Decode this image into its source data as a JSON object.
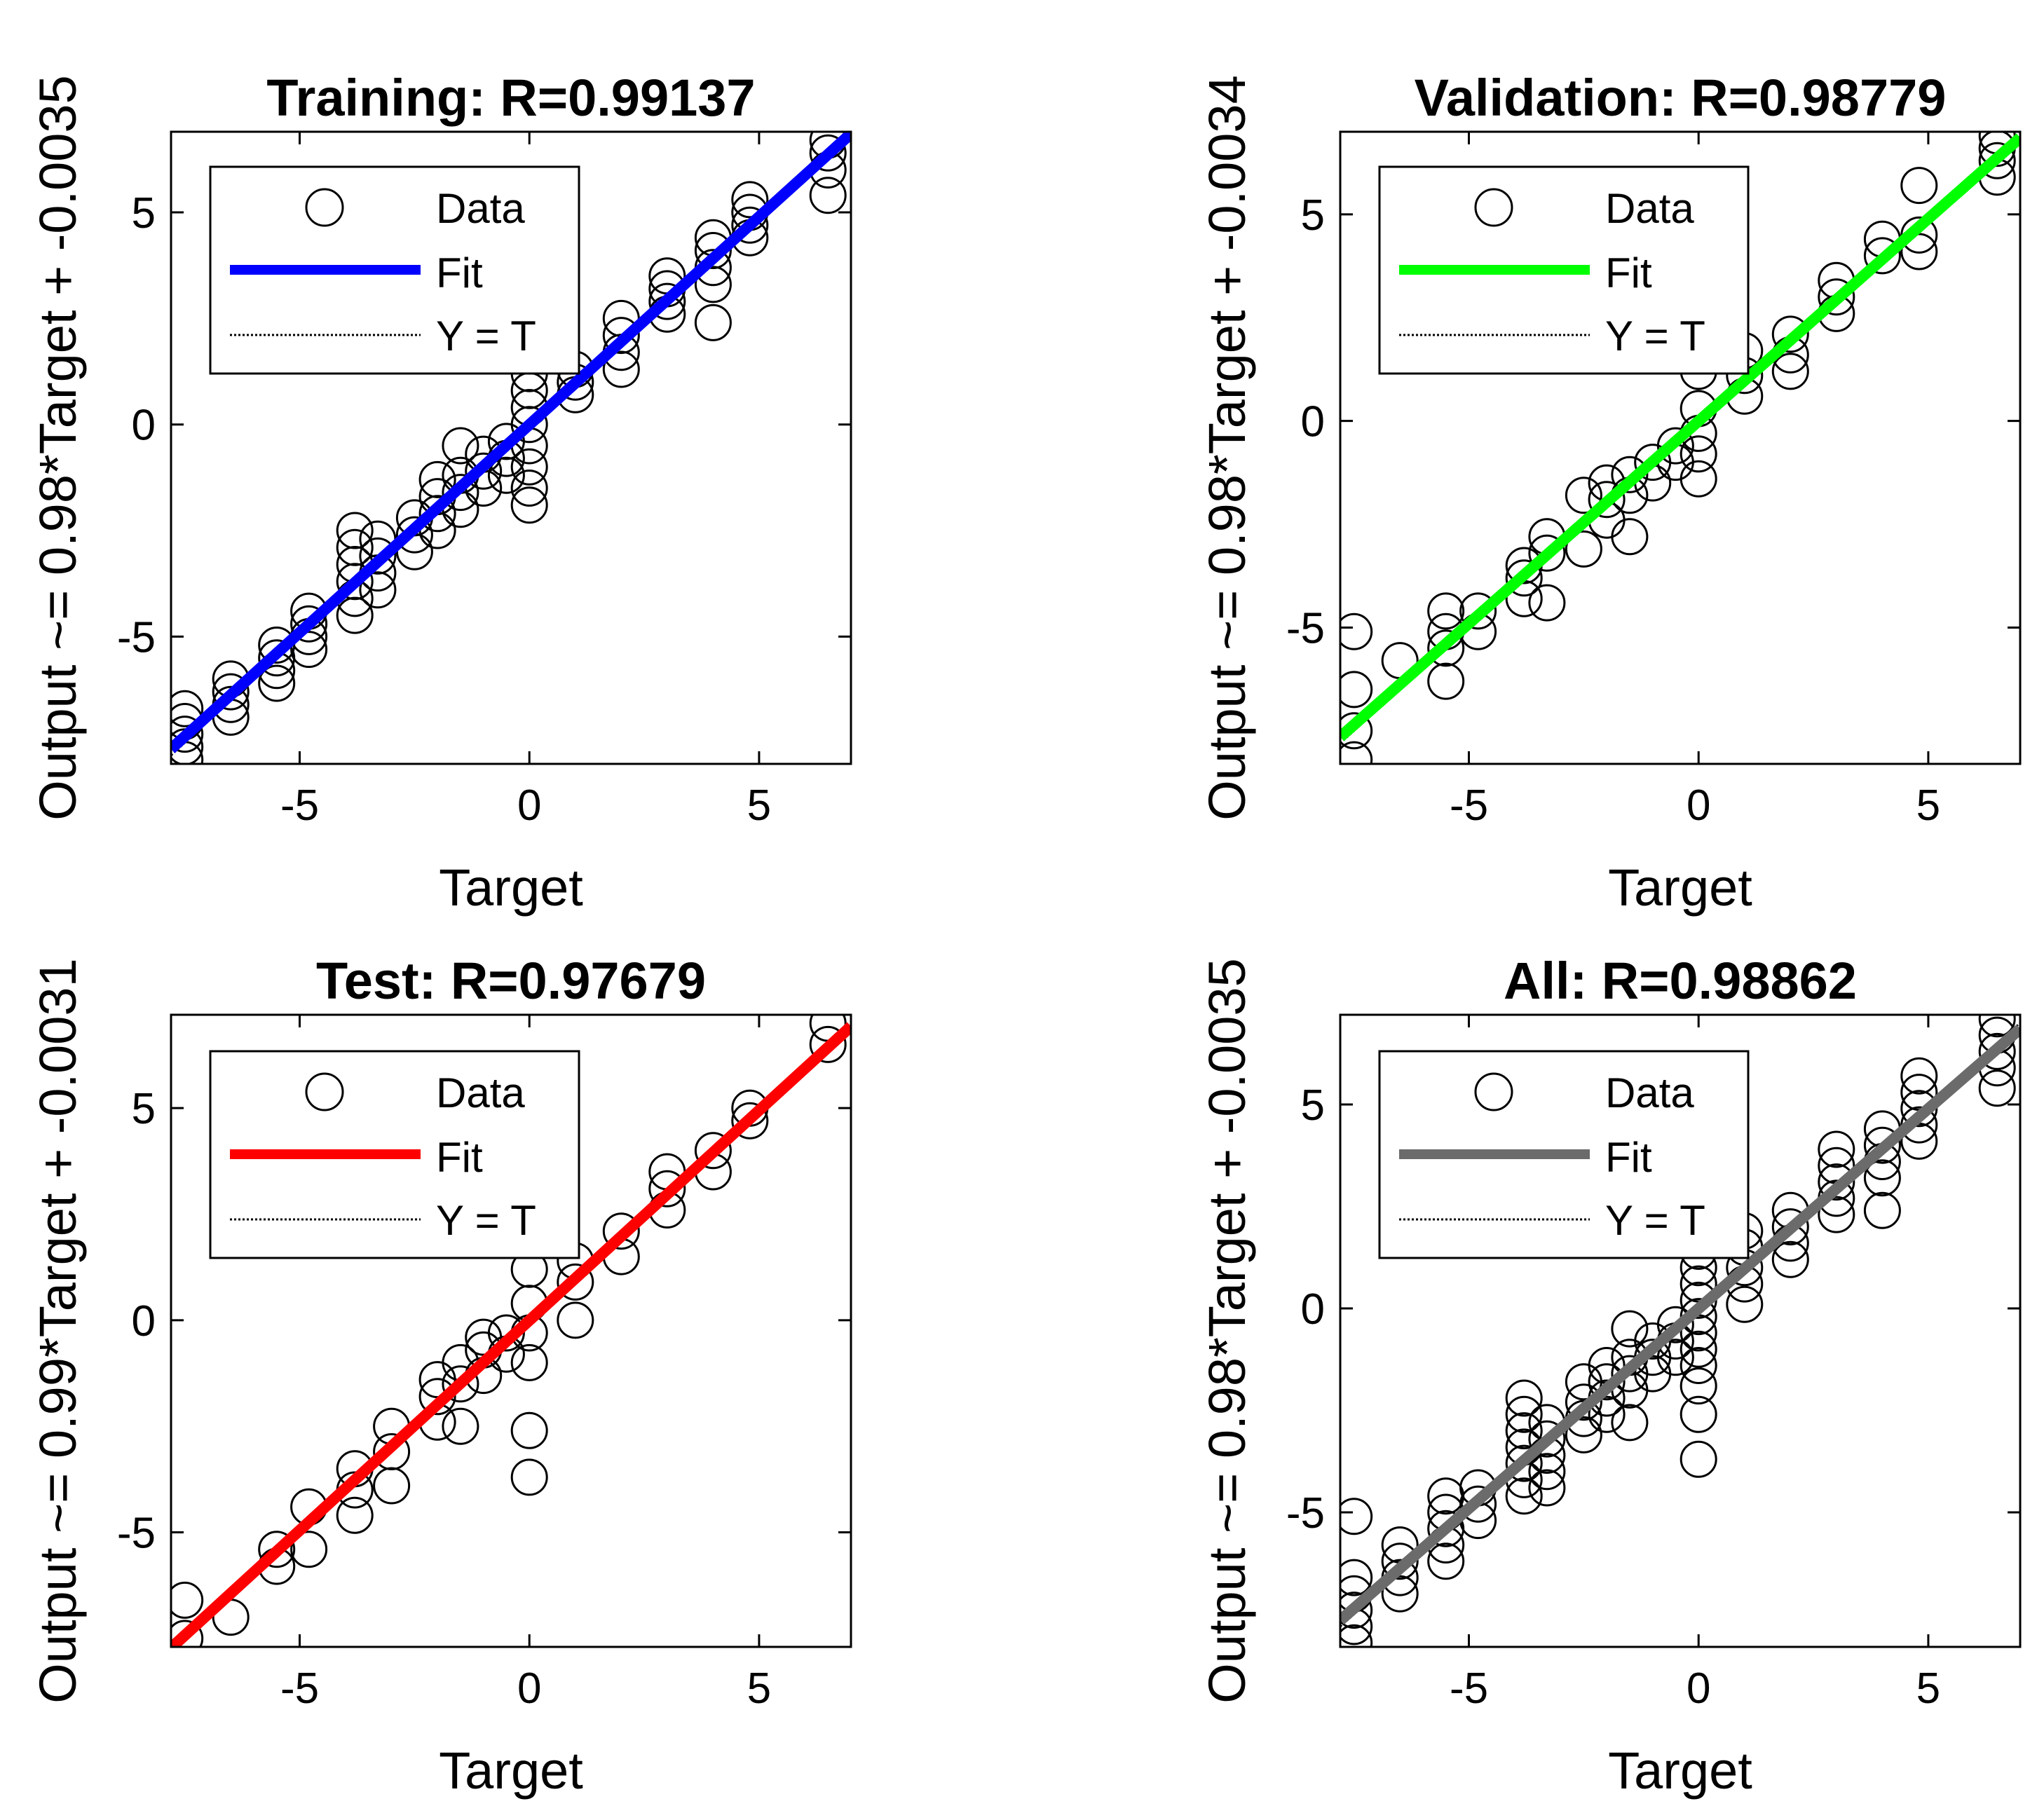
{
  "figure": {
    "marker": "circle-open",
    "marker_color": "#000000"
  },
  "chart_data": [
    {
      "type": "scatter",
      "title": "Training: R=0.99137",
      "xlabel": "Target",
      "ylabel": "Output ~= 0.98*Target + -0.0035",
      "xlim": [
        -7.8,
        7.0
      ],
      "ylim": [
        -8.0,
        6.9
      ],
      "xticks": [
        -5,
        0,
        5
      ],
      "yticks": [
        -5,
        0,
        5
      ],
      "legend": {
        "position": "top-left",
        "entries": [
          "Data",
          "Fit",
          "Y = T"
        ]
      },
      "fit": {
        "slope": 0.98,
        "intercept": -0.0035,
        "color": "#0000ff"
      },
      "target_levels": [
        -7.5,
        -6.5,
        -5.5,
        -4.8,
        -3.8,
        -3.3,
        -2.5,
        -2.0,
        -1.5,
        -1.0,
        -0.5,
        0.0,
        1.0,
        2.0,
        3.0,
        4.0,
        4.8,
        6.5
      ],
      "points": [
        [
          -7.5,
          -7.9
        ],
        [
          -7.5,
          -7.6
        ],
        [
          -7.5,
          -7.3
        ],
        [
          -7.5,
          -7.0
        ],
        [
          -7.5,
          -6.7
        ],
        [
          -6.5,
          -6.9
        ],
        [
          -6.5,
          -6.6
        ],
        [
          -6.5,
          -6.3
        ],
        [
          -6.5,
          -6.0
        ],
        [
          -5.5,
          -6.1
        ],
        [
          -5.5,
          -5.8
        ],
        [
          -5.5,
          -5.5
        ],
        [
          -5.5,
          -5.2
        ],
        [
          -4.8,
          -5.3
        ],
        [
          -4.8,
          -5.0
        ],
        [
          -4.8,
          -4.7
        ],
        [
          -4.8,
          -4.4
        ],
        [
          -3.8,
          -4.5
        ],
        [
          -3.8,
          -4.1
        ],
        [
          -3.8,
          -3.7
        ],
        [
          -3.8,
          -3.3
        ],
        [
          -3.8,
          -2.9
        ],
        [
          -3.8,
          -2.5
        ],
        [
          -3.3,
          -3.9
        ],
        [
          -3.3,
          -3.5
        ],
        [
          -3.3,
          -3.1
        ],
        [
          -3.3,
          -2.7
        ],
        [
          -2.5,
          -3.0
        ],
        [
          -2.5,
          -2.6
        ],
        [
          -2.5,
          -2.2
        ],
        [
          -2.0,
          -2.5
        ],
        [
          -2.0,
          -2.1
        ],
        [
          -2.0,
          -1.7
        ],
        [
          -2.0,
          -1.3
        ],
        [
          -1.5,
          -2.0
        ],
        [
          -1.5,
          -1.6
        ],
        [
          -1.5,
          -1.2
        ],
        [
          -1.5,
          -0.5
        ],
        [
          -1.0,
          -1.5
        ],
        [
          -1.0,
          -1.1
        ],
        [
          -1.0,
          -0.7
        ],
        [
          -0.5,
          -1.2
        ],
        [
          -0.5,
          -0.8
        ],
        [
          -0.5,
          -0.4
        ],
        [
          0.0,
          -1.9
        ],
        [
          0.0,
          -1.5
        ],
        [
          0.0,
          -1.0
        ],
        [
          0.0,
          -0.5
        ],
        [
          0.0,
          0.0
        ],
        [
          0.0,
          0.4
        ],
        [
          0.0,
          0.8
        ],
        [
          0.0,
          1.2
        ],
        [
          1.0,
          0.7
        ],
        [
          1.0,
          1.0
        ],
        [
          1.0,
          1.3
        ],
        [
          2.0,
          1.3
        ],
        [
          2.0,
          1.7
        ],
        [
          2.0,
          2.1
        ],
        [
          2.0,
          2.5
        ],
        [
          3.0,
          2.6
        ],
        [
          3.0,
          2.9
        ],
        [
          3.0,
          3.2
        ],
        [
          3.0,
          3.5
        ],
        [
          4.0,
          2.4
        ],
        [
          4.0,
          3.3
        ],
        [
          4.0,
          3.7
        ],
        [
          4.0,
          4.1
        ],
        [
          4.0,
          4.4
        ],
        [
          4.8,
          4.4
        ],
        [
          4.8,
          4.7
        ],
        [
          4.8,
          5.0
        ],
        [
          4.8,
          5.3
        ],
        [
          6.5,
          5.4
        ],
        [
          6.5,
          6.0
        ],
        [
          6.5,
          6.4
        ],
        [
          6.5,
          6.7
        ]
      ]
    },
    {
      "type": "scatter",
      "title": "Validation: R=0.98779",
      "xlabel": "Target",
      "ylabel": "Output ~= 0.98*Target + -0.0034",
      "xlim": [
        -7.8,
        7.0
      ],
      "ylim": [
        -8.3,
        7.0
      ],
      "xticks": [
        -5,
        0,
        5
      ],
      "yticks": [
        -5,
        0,
        5
      ],
      "legend": {
        "position": "top-left",
        "entries": [
          "Data",
          "Fit",
          "Y = T"
        ]
      },
      "fit": {
        "slope": 0.98,
        "intercept": -0.0034,
        "color": "#00ff00"
      },
      "target_levels": [
        -7.5,
        -6.5,
        -5.5,
        -4.8,
        -3.8,
        -3.3,
        -2.5,
        -2.0,
        -1.5,
        -1.0,
        -0.5,
        0.0,
        1.0,
        2.0,
        3.0,
        4.0,
        4.8,
        6.5
      ],
      "points": [
        [
          -7.5,
          -8.2
        ],
        [
          -7.5,
          -7.5
        ],
        [
          -7.5,
          -6.5
        ],
        [
          -7.5,
          -5.1
        ],
        [
          -6.5,
          -5.8
        ],
        [
          -5.5,
          -6.3
        ],
        [
          -5.5,
          -5.5
        ],
        [
          -5.5,
          -5.1
        ],
        [
          -5.5,
          -4.6
        ],
        [
          -4.8,
          -5.1
        ],
        [
          -4.8,
          -4.6
        ],
        [
          -3.8,
          -4.3
        ],
        [
          -3.8,
          -3.8
        ],
        [
          -3.8,
          -3.5
        ],
        [
          -3.3,
          -4.4
        ],
        [
          -3.3,
          -3.2
        ],
        [
          -3.3,
          -2.8
        ],
        [
          -2.5,
          -3.1
        ],
        [
          -2.5,
          -1.8
        ],
        [
          -2.0,
          -2.4
        ],
        [
          -2.0,
          -1.9
        ],
        [
          -2.0,
          -1.5
        ],
        [
          -1.5,
          -2.8
        ],
        [
          -1.5,
          -1.8
        ],
        [
          -1.5,
          -1.3
        ],
        [
          -1.0,
          -1.5
        ],
        [
          -1.0,
          -1.0
        ],
        [
          -0.5,
          -1.0
        ],
        [
          -0.5,
          -0.6
        ],
        [
          0.0,
          -1.4
        ],
        [
          0.0,
          -0.8
        ],
        [
          0.0,
          -0.3
        ],
        [
          0.0,
          0.3
        ],
        [
          0.0,
          1.2
        ],
        [
          1.0,
          0.6
        ],
        [
          1.0,
          1.1
        ],
        [
          1.0,
          1.7
        ],
        [
          2.0,
          1.2
        ],
        [
          2.0,
          1.6
        ],
        [
          2.0,
          2.1
        ],
        [
          3.0,
          2.6
        ],
        [
          3.0,
          3.0
        ],
        [
          3.0,
          3.4
        ],
        [
          4.0,
          4.0
        ],
        [
          4.0,
          4.4
        ],
        [
          4.8,
          4.1
        ],
        [
          4.8,
          4.5
        ],
        [
          4.8,
          5.7
        ],
        [
          6.5,
          5.9
        ],
        [
          6.5,
          6.3
        ],
        [
          6.5,
          6.6
        ],
        [
          6.5,
          6.9
        ]
      ]
    },
    {
      "type": "scatter",
      "title": "Test: R=0.97679",
      "xlabel": "Target",
      "ylabel": "Output ~= 0.99*Target + -0.0031",
      "xlim": [
        -7.8,
        7.0
      ],
      "ylim": [
        -7.7,
        7.2
      ],
      "xticks": [
        -5,
        0,
        5
      ],
      "yticks": [
        -5,
        0,
        5
      ],
      "legend": {
        "position": "top-left",
        "entries": [
          "Data",
          "Fit",
          "Y = T"
        ]
      },
      "fit": {
        "slope": 0.99,
        "intercept": -0.0031,
        "color": "#ff0000"
      },
      "target_levels": [
        -7.5,
        -6.5,
        -5.5,
        -4.8,
        -3.8,
        -3.3,
        -2.5,
        -2.0,
        -1.5,
        -1.0,
        -0.5,
        0.0,
        1.0,
        2.0,
        3.0,
        4.0,
        4.8,
        6.5
      ],
      "points": [
        [
          -7.5,
          -7.5
        ],
        [
          -7.5,
          -6.6
        ],
        [
          -6.5,
          -7.0
        ],
        [
          -5.5,
          -5.8
        ],
        [
          -5.5,
          -5.4
        ],
        [
          -4.8,
          -5.4
        ],
        [
          -4.8,
          -4.4
        ],
        [
          -3.8,
          -4.6
        ],
        [
          -3.8,
          -4.0
        ],
        [
          -3.8,
          -3.5
        ],
        [
          -3.0,
          -3.9
        ],
        [
          -3.0,
          -3.1
        ],
        [
          -3.0,
          -2.5
        ],
        [
          -2.0,
          -2.4
        ],
        [
          -2.0,
          -1.8
        ],
        [
          -2.0,
          -1.4
        ],
        [
          -1.5,
          -2.5
        ],
        [
          -1.5,
          -1.5
        ],
        [
          -1.5,
          -1.0
        ],
        [
          -1.0,
          -1.3
        ],
        [
          -1.0,
          -0.7
        ],
        [
          -1.0,
          -0.4
        ],
        [
          -0.5,
          -0.8
        ],
        [
          -0.5,
          -0.3
        ],
        [
          0.0,
          -3.7
        ],
        [
          0.0,
          -2.6
        ],
        [
          0.0,
          -1.0
        ],
        [
          0.0,
          -0.3
        ],
        [
          0.0,
          0.4
        ],
        [
          0.0,
          1.2
        ],
        [
          1.0,
          0.0
        ],
        [
          1.0,
          0.9
        ],
        [
          1.0,
          1.4
        ],
        [
          2.0,
          1.5
        ],
        [
          2.0,
          2.1
        ],
        [
          3.0,
          2.6
        ],
        [
          3.0,
          3.1
        ],
        [
          3.0,
          3.5
        ],
        [
          4.0,
          3.5
        ],
        [
          4.0,
          4.0
        ],
        [
          4.8,
          4.7
        ],
        [
          4.8,
          5.0
        ],
        [
          6.5,
          6.5
        ],
        [
          6.5,
          7.0
        ]
      ]
    },
    {
      "type": "scatter",
      "title": "All: R=0.98862",
      "xlabel": "Target",
      "ylabel": "Output ~= 0.98*Target + -0.0035",
      "xlim": [
        -7.8,
        7.0
      ],
      "ylim": [
        -8.3,
        7.2
      ],
      "xticks": [
        -5,
        0,
        5
      ],
      "yticks": [
        -5,
        0,
        5
      ],
      "legend": {
        "position": "top-left",
        "entries": [
          "Data",
          "Fit",
          "Y = T"
        ]
      },
      "fit": {
        "slope": 0.98,
        "intercept": -0.0035,
        "color": "#6b6b6b"
      },
      "target_levels": [
        -7.5,
        -6.5,
        -5.5,
        -4.8,
        -3.8,
        -3.3,
        -2.5,
        -2.0,
        -1.5,
        -1.0,
        -0.5,
        0.0,
        1.0,
        2.0,
        3.0,
        4.0,
        4.8,
        6.5
      ],
      "points": [
        [
          -7.5,
          -8.2
        ],
        [
          -7.5,
          -7.8
        ],
        [
          -7.5,
          -7.4
        ],
        [
          -7.5,
          -7.0
        ],
        [
          -7.5,
          -6.6
        ],
        [
          -7.5,
          -5.1
        ],
        [
          -6.5,
          -7.0
        ],
        [
          -6.5,
          -6.6
        ],
        [
          -6.5,
          -6.2
        ],
        [
          -6.5,
          -5.8
        ],
        [
          -5.5,
          -6.2
        ],
        [
          -5.5,
          -5.8
        ],
        [
          -5.5,
          -5.4
        ],
        [
          -5.5,
          -5.0
        ],
        [
          -5.5,
          -4.6
        ],
        [
          -4.8,
          -5.2
        ],
        [
          -4.8,
          -4.8
        ],
        [
          -4.8,
          -4.4
        ],
        [
          -3.8,
          -4.6
        ],
        [
          -3.8,
          -4.2
        ],
        [
          -3.8,
          -3.8
        ],
        [
          -3.8,
          -3.4
        ],
        [
          -3.8,
          -3.0
        ],
        [
          -3.8,
          -2.6
        ],
        [
          -3.8,
          -2.2
        ],
        [
          -3.3,
          -4.4
        ],
        [
          -3.3,
          -4.0
        ],
        [
          -3.3,
          -3.6
        ],
        [
          -3.3,
          -3.2
        ],
        [
          -3.3,
          -2.8
        ],
        [
          -2.5,
          -3.1
        ],
        [
          -2.5,
          -2.7
        ],
        [
          -2.5,
          -2.3
        ],
        [
          -2.5,
          -1.8
        ],
        [
          -2.0,
          -2.6
        ],
        [
          -2.0,
          -2.2
        ],
        [
          -2.0,
          -1.8
        ],
        [
          -2.0,
          -1.4
        ],
        [
          -1.5,
          -2.8
        ],
        [
          -1.5,
          -2.0
        ],
        [
          -1.5,
          -1.6
        ],
        [
          -1.5,
          -1.2
        ],
        [
          -1.5,
          -0.5
        ],
        [
          -1.0,
          -1.6
        ],
        [
          -1.0,
          -1.2
        ],
        [
          -1.0,
          -0.8
        ],
        [
          -0.5,
          -1.2
        ],
        [
          -0.5,
          -0.8
        ],
        [
          -0.5,
          -0.4
        ],
        [
          0.0,
          -3.7
        ],
        [
          0.0,
          -2.6
        ],
        [
          0.0,
          -1.9
        ],
        [
          0.0,
          -1.4
        ],
        [
          0.0,
          -1.0
        ],
        [
          0.0,
          -0.6
        ],
        [
          0.0,
          -0.2
        ],
        [
          0.0,
          0.2
        ],
        [
          0.0,
          0.6
        ],
        [
          0.0,
          1.0
        ],
        [
          0.0,
          1.4
        ],
        [
          1.0,
          0.1
        ],
        [
          1.0,
          0.6
        ],
        [
          1.0,
          1.0
        ],
        [
          1.0,
          1.5
        ],
        [
          1.0,
          1.9
        ],
        [
          2.0,
          1.2
        ],
        [
          2.0,
          1.6
        ],
        [
          2.0,
          2.0
        ],
        [
          2.0,
          2.4
        ],
        [
          3.0,
          2.3
        ],
        [
          3.0,
          2.7
        ],
        [
          3.0,
          3.1
        ],
        [
          3.0,
          3.5
        ],
        [
          3.0,
          3.9
        ],
        [
          4.0,
          2.4
        ],
        [
          4.0,
          3.2
        ],
        [
          4.0,
          3.6
        ],
        [
          4.0,
          4.0
        ],
        [
          4.0,
          4.4
        ],
        [
          4.8,
          4.1
        ],
        [
          4.8,
          4.5
        ],
        [
          4.8,
          4.9
        ],
        [
          4.8,
          5.3
        ],
        [
          4.8,
          5.7
        ],
        [
          6.5,
          5.4
        ],
        [
          6.5,
          5.9
        ],
        [
          6.5,
          6.3
        ],
        [
          6.5,
          6.7
        ],
        [
          6.5,
          7.1
        ]
      ]
    }
  ]
}
